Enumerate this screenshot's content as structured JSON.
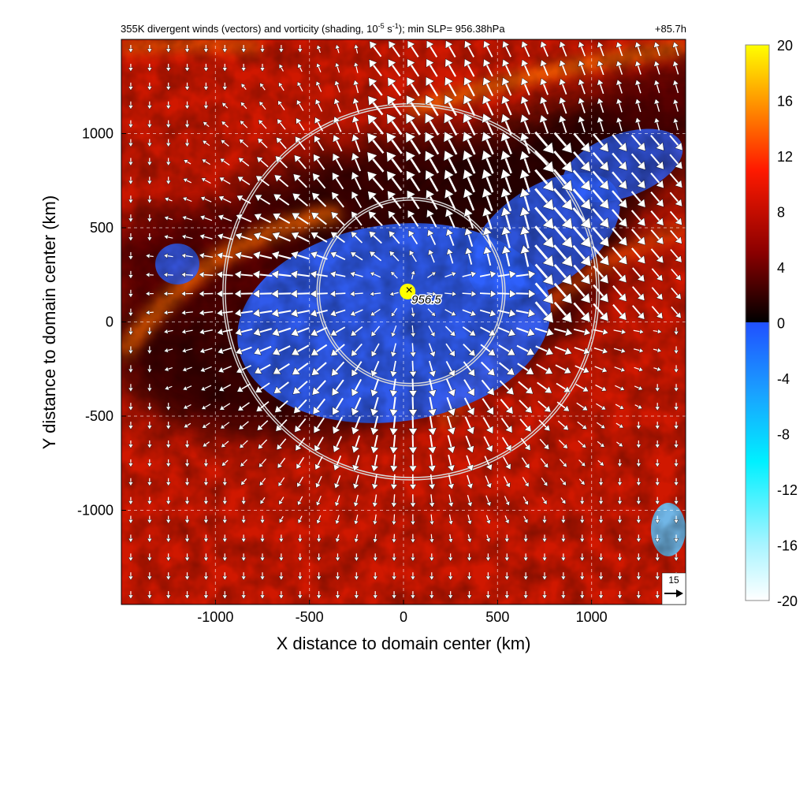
{
  "chart_data": {
    "type": "heatmap",
    "title": "355K divergent winds (vectors) and vorticity (shading, 10",
    "title_exponent": "-5",
    "title_unit_tail": " s",
    "title_unit_exponent": "-1",
    "title_suffix": "); min SLP= 956.38hPa",
    "forecast_hour": "+85.7h",
    "xlabel": "X distance to domain center (km)",
    "ylabel": "Y distance to domain center (km)",
    "xlim": [
      -1500,
      1500
    ],
    "ylim": [
      -1500,
      1500
    ],
    "x_ticks": [
      -1000,
      -500,
      0,
      500,
      1000
    ],
    "y_ticks": [
      -1000,
      -500,
      0,
      500,
      1000
    ],
    "x_tick_labels": [
      "-1000",
      "-500",
      "0",
      "500",
      "1000"
    ],
    "y_tick_labels": [
      "-1000",
      "-500",
      "0",
      "500",
      "1000"
    ],
    "grid": true,
    "colorbar": {
      "ticks": [
        20,
        16,
        12,
        8,
        4,
        0,
        -4,
        -8,
        -12,
        -16,
        -20
      ],
      "tick_labels": [
        "20",
        "16",
        "12",
        "8",
        "4",
        "0",
        "-4",
        "-8",
        "-12",
        "-16",
        "-20"
      ],
      "range": [
        -20,
        20
      ]
    },
    "center_marker": {
      "x": 30,
      "y": 170,
      "label": "956.5"
    },
    "range_rings_km": [
      500,
      1000
    ],
    "ring_center": {
      "x": 40,
      "y": 160
    },
    "reference_vector": {
      "label": "15",
      "magnitude": 15
    },
    "colors": {
      "positive_low": "#000000",
      "positive_mid": "#8b0000",
      "positive_high": "#ff2000",
      "positive_peak": "#ffff00",
      "negative_low": "#2050ff",
      "negative_high": "#ffffff",
      "vectors": "#ffffff",
      "grid": "#ffffff",
      "rings": "#d8d8d8"
    }
  }
}
